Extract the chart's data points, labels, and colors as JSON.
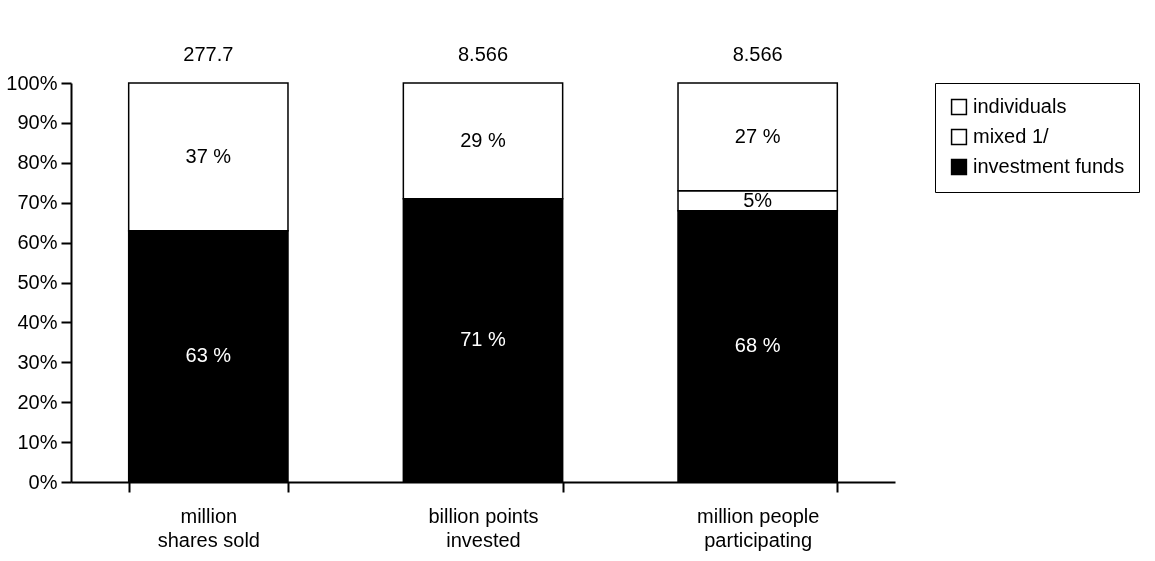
{
  "chart_data": {
    "type": "bar",
    "stacked": true,
    "categories": [
      "million shares sold",
      "billion points invested",
      "million people participating"
    ],
    "series": [
      {
        "name": "investment funds",
        "color": "#000000",
        "values": [
          63,
          71,
          68
        ],
        "value_labels": [
          "63 %",
          "71 %",
          "68 %"
        ]
      },
      {
        "name": "mixed 1/",
        "color": "#ffffff",
        "values": [
          null,
          null,
          5
        ],
        "value_labels": [
          null,
          null,
          "5%"
        ]
      },
      {
        "name": "individuals",
        "color": "#ffffff",
        "values": [
          37,
          29,
          27
        ],
        "value_labels": [
          "37 %",
          "29 %",
          "27 %"
        ]
      }
    ],
    "annotations": [
      {
        "text": "277.7",
        "x": "million shares sold",
        "y": 100
      },
      {
        "text": "8.566",
        "x": "billion points invested",
        "y": 100
      },
      {
        "text": "8.566",
        "x": "million people participating",
        "y": 100
      }
    ],
    "ylim": [
      0,
      100
    ],
    "yticks": [
      {
        "value": 0,
        "label": "0%"
      },
      {
        "value": 10,
        "label": "10%"
      },
      {
        "value": 20,
        "label": "20%"
      },
      {
        "value": 30,
        "label": "30%"
      },
      {
        "value": 40,
        "label": "40%"
      },
      {
        "value": 50,
        "label": "50%"
      },
      {
        "value": 60,
        "label": "60%"
      },
      {
        "value": 70,
        "label": "70%"
      },
      {
        "value": 80,
        "label": "80%"
      },
      {
        "value": 90,
        "label": "90%"
      },
      {
        "value": 100,
        "label": "100%"
      }
    ],
    "grid": false,
    "legend": "right"
  }
}
